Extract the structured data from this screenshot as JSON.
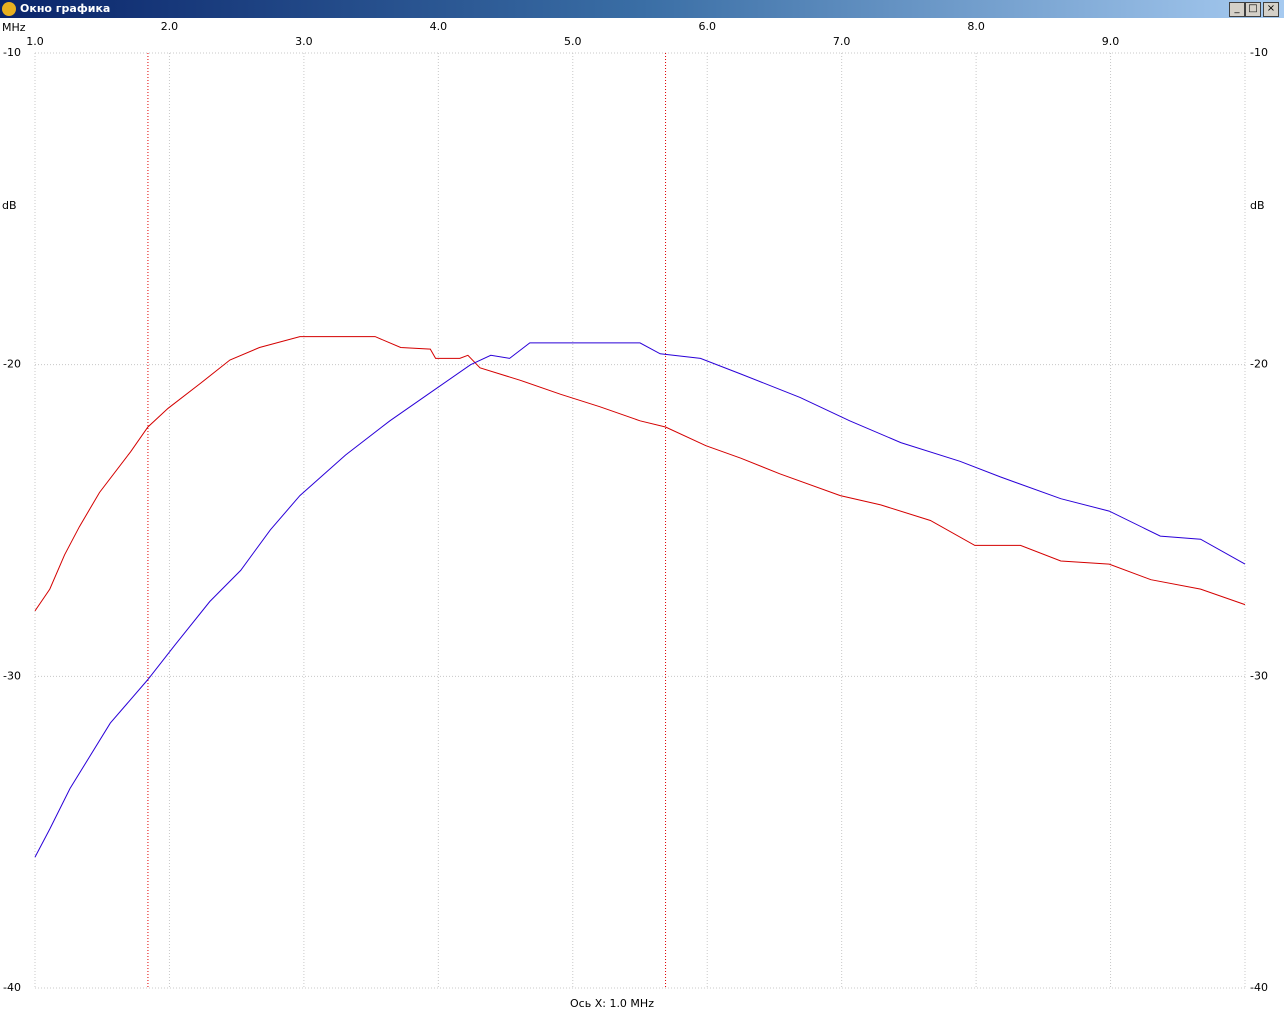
{
  "window": {
    "title": "Окно графика"
  },
  "chart_data": {
    "type": "line",
    "x_label": "MHz",
    "y_label": "dB",
    "footer": "Ось X: 1.0 MHz",
    "xlim": [
      1,
      10
    ],
    "ylim": [
      -40,
      -10
    ],
    "xticks": [
      {
        "value": 1,
        "label": "1.0"
      },
      {
        "value": 2,
        "label": "2.0"
      },
      {
        "value": 3,
        "label": "3.0"
      },
      {
        "value": 4,
        "label": "4.0"
      },
      {
        "value": 5,
        "label": "5.0"
      },
      {
        "value": 6,
        "label": "6.0"
      },
      {
        "value": 7,
        "label": "7.0"
      },
      {
        "value": 8,
        "label": "8.0"
      },
      {
        "value": 9,
        "label": "9.0"
      }
    ],
    "yticks": [
      -10,
      -20,
      -30,
      -40
    ],
    "grid": true,
    "markers": [
      1.84,
      5.69
    ],
    "marker_color": "#e00000",
    "series": [
      {
        "color": "#d40000",
        "x": [
          1.0,
          1.11,
          1.22,
          1.33,
          1.48,
          1.71,
          1.84,
          1.99,
          2.23,
          2.45,
          2.67,
          2.97,
          3.53,
          3.72,
          3.94,
          3.98,
          4.16,
          4.22,
          4.31,
          4.61,
          4.91,
          5.2,
          5.5,
          5.69,
          5.99,
          6.25,
          6.54,
          6.99,
          7.29,
          7.66,
          7.99,
          8.33,
          8.63,
          8.99,
          9.3,
          9.67,
          10.0
        ],
        "values": [
          -27.9,
          -27.2,
          -26.1,
          -25.2,
          -24.1,
          -22.8,
          -22.0,
          -21.4,
          -20.6,
          -19.85,
          -19.45,
          -19.1,
          -19.1,
          -19.45,
          -19.5,
          -19.8,
          -19.8,
          -19.7,
          -20.1,
          -20.5,
          -20.95,
          -21.35,
          -21.8,
          -22.0,
          -22.6,
          -23.0,
          -23.5,
          -24.2,
          -24.5,
          -25.0,
          -25.8,
          -25.8,
          -26.3,
          -26.4,
          -26.9,
          -27.2,
          -27.7
        ]
      },
      {
        "color": "#2a00d8",
        "x": [
          1.0,
          1.11,
          1.26,
          1.56,
          1.84,
          2.04,
          2.3,
          2.53,
          2.75,
          2.97,
          3.31,
          3.64,
          3.94,
          4.24,
          4.39,
          4.53,
          4.68,
          5.5,
          5.65,
          5.95,
          6.25,
          6.69,
          7.06,
          7.44,
          7.88,
          8.18,
          8.63,
          8.99,
          9.37,
          9.67,
          10.0
        ],
        "values": [
          -35.8,
          -34.9,
          -33.6,
          -31.5,
          -30.1,
          -29.0,
          -27.6,
          -26.6,
          -25.3,
          -24.2,
          -22.9,
          -21.8,
          -20.9,
          -20.0,
          -19.7,
          -19.8,
          -19.3,
          -19.3,
          -19.65,
          -19.8,
          -20.3,
          -21.05,
          -21.8,
          -22.5,
          -23.1,
          -23.6,
          -24.3,
          -24.7,
          -25.5,
          -25.6,
          -26.4
        ]
      }
    ]
  }
}
